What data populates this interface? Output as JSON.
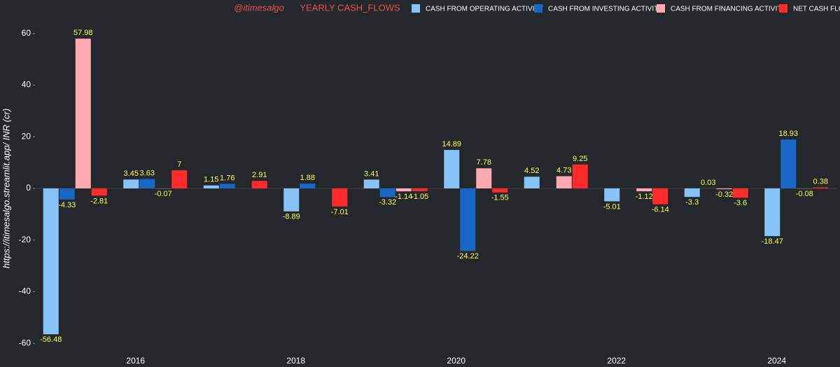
{
  "chart_data": {
    "type": "bar",
    "title": "YEARLY  CASH_FLOWS",
    "subtitle": "@itimesalgo",
    "y_label": "https://itimesalgo.streamlit.app/   INR (cr)",
    "categories": [
      null,
      "2016",
      null,
      "2018",
      null,
      "2020",
      null,
      "2022",
      null,
      "2024"
    ],
    "series": [
      {
        "name": "CASH FROM OPERATING ACTIVITY",
        "color": "#87c3f7",
        "values": [
          -56.48,
          3.45,
          1.15,
          -8.89,
          3.41,
          14.89,
          4.52,
          -5.01,
          -3.3,
          -18.47
        ]
      },
      {
        "name": "CASH FROM INVESTING ACTIVITY",
        "color": "#1866c6",
        "values": [
          -4.33,
          3.63,
          1.76,
          1.88,
          -3.32,
          -24.22,
          null,
          null,
          0.03,
          18.93
        ]
      },
      {
        "name": "CASH FROM FINANCING ACTIVITY",
        "color": "#ffaab0",
        "values": [
          57.98,
          -0.07,
          null,
          null,
          -1.14,
          7.78,
          4.73,
          -1.12,
          -0.32,
          -0.08
        ]
      },
      {
        "name": "NET CASH FLOW",
        "color": "#ff2b2b",
        "values": [
          -2.81,
          7,
          2.91,
          -7.01,
          -1.05,
          -1.55,
          9.25,
          -6.14,
          -3.6,
          0.38
        ]
      }
    ],
    "ylim": [
      -64,
      64
    ],
    "yticks": [
      -60,
      -40,
      -20,
      0,
      20,
      40,
      60
    ],
    "grid": false
  }
}
